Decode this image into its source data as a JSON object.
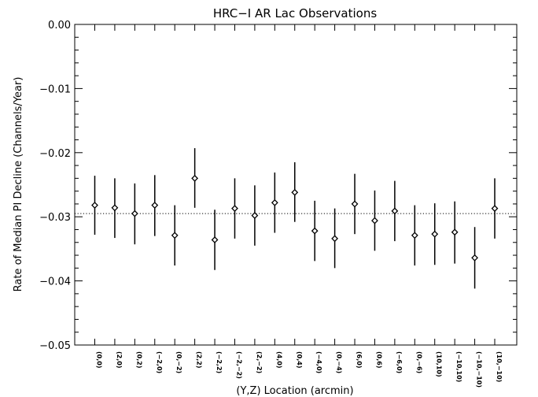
{
  "chart_data": {
    "type": "scatter",
    "title": "HRC−I AR Lac Observations",
    "xlabel": "(Y,Z) Location (arcmin)",
    "ylabel": "Rate of Median PI Decline (Channels/Year)",
    "ylim": [
      -0.05,
      0.0
    ],
    "y_ticks": [
      "−0.05",
      "−0.04",
      "−0.03",
      "−0.02",
      "−0.01",
      "0.00"
    ],
    "y_tick_values": [
      -0.05,
      -0.04,
      -0.03,
      -0.02,
      -0.01,
      0.0
    ],
    "grid": false,
    "reference_line": -0.0295,
    "categories": [
      "(0,0)",
      "(2,0)",
      "(0,2)",
      "(−2,0)",
      "(0,−2)",
      "(2,2)",
      "(−2,2)",
      "(−2,−2)",
      "(2,−2)",
      "(4,0)",
      "(0,4)",
      "(−4,0)",
      "(0,−4)",
      "(6,0)",
      "(0,6)",
      "(−6,0)",
      "(0,−6)",
      "(10,10)",
      "(−10,10)",
      "(−10,−10)",
      "(10,−10)"
    ],
    "series": [
      {
        "values": [
          -0.0282,
          -0.0286,
          -0.0295,
          -0.0282,
          -0.0329,
          -0.024,
          -0.0336,
          -0.0287,
          -0.0298,
          -0.0278,
          -0.0262,
          -0.0322,
          -0.0334,
          -0.028,
          -0.0306,
          -0.0291,
          -0.0329,
          -0.0327,
          -0.0324,
          -0.0364,
          -0.0287
        ],
        "err_low": [
          -0.0328,
          -0.0333,
          -0.0343,
          -0.033,
          -0.0376,
          -0.0286,
          -0.0383,
          -0.0334,
          -0.0345,
          -0.0325,
          -0.0308,
          -0.0369,
          -0.038,
          -0.0327,
          -0.0353,
          -0.0338,
          -0.0376,
          -0.0375,
          -0.0373,
          -0.0412,
          -0.0334
        ],
        "err_high": [
          -0.0236,
          -0.024,
          -0.0248,
          -0.0235,
          -0.0282,
          -0.0193,
          -0.0289,
          -0.024,
          -0.0251,
          -0.0231,
          -0.0215,
          -0.0275,
          -0.0287,
          -0.0233,
          -0.0259,
          -0.0244,
          -0.0282,
          -0.0279,
          -0.0276,
          -0.0316,
          -0.024
        ]
      }
    ]
  }
}
